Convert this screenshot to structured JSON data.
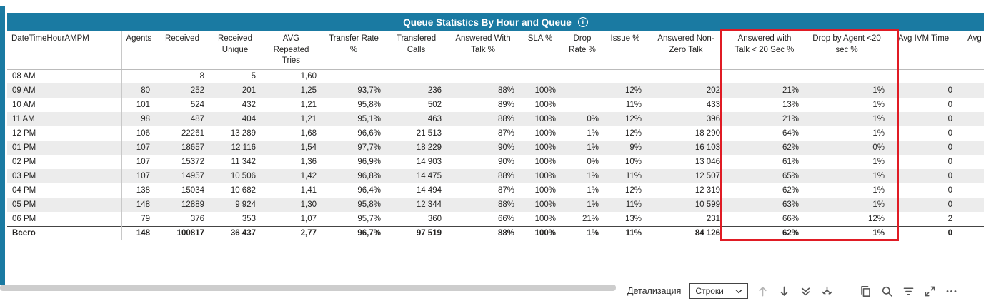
{
  "colors": {
    "accent": "#1A7AA2",
    "highlight": "#E01B24",
    "row_alt": "#ECECEC"
  },
  "visual": {
    "title": "Queue Statistics By Hour and Queue",
    "info_glyph": "i"
  },
  "table": {
    "columns": [
      "DateTimeHourAMPM",
      "Agents",
      "Received",
      "Received Unique",
      "AVG Repeated Tries",
      "Transfer Rate %",
      "Transfered Calls",
      "Answered With Talk %",
      "SLA %",
      "Drop Rate %",
      "Issue %",
      "Answered Non-Zero Talk",
      "Answered with Talk < 20 Sec %",
      "Drop by Agent <20 sec %",
      "Avg IVM Time",
      "Avg Ti"
    ],
    "rows": [
      [
        "08 AM",
        "",
        "8",
        "5",
        "1,60",
        "",
        "",
        "",
        "",
        "",
        "",
        "",
        "",
        "",
        "",
        ""
      ],
      [
        "09 AM",
        "80",
        "252",
        "201",
        "1,25",
        "93,7%",
        "236",
        "88%",
        "100%",
        "",
        "12%",
        "202",
        "21%",
        "1%",
        "0",
        ""
      ],
      [
        "10 AM",
        "101",
        "524",
        "432",
        "1,21",
        "95,8%",
        "502",
        "89%",
        "100%",
        "",
        "11%",
        "433",
        "13%",
        "1%",
        "0",
        ""
      ],
      [
        "11 AM",
        "98",
        "487",
        "404",
        "1,21",
        "95,1%",
        "463",
        "88%",
        "100%",
        "0%",
        "12%",
        "396",
        "21%",
        "1%",
        "0",
        ""
      ],
      [
        "12 PM",
        "106",
        "22261",
        "13 289",
        "1,68",
        "96,6%",
        "21 513",
        "87%",
        "100%",
        "1%",
        "12%",
        "18 290",
        "64%",
        "1%",
        "0",
        ""
      ],
      [
        "01 PM",
        "107",
        "18657",
        "12 116",
        "1,54",
        "97,7%",
        "18 229",
        "90%",
        "100%",
        "1%",
        "9%",
        "16 103",
        "62%",
        "0%",
        "0",
        ""
      ],
      [
        "02 PM",
        "107",
        "15372",
        "11 342",
        "1,36",
        "96,9%",
        "14 903",
        "90%",
        "100%",
        "0%",
        "10%",
        "13 046",
        "61%",
        "1%",
        "0",
        ""
      ],
      [
        "03 PM",
        "107",
        "14957",
        "10 506",
        "1,42",
        "96,8%",
        "14 475",
        "88%",
        "100%",
        "1%",
        "11%",
        "12 507",
        "65%",
        "1%",
        "0",
        ""
      ],
      [
        "04 PM",
        "138",
        "15034",
        "10 682",
        "1,41",
        "96,4%",
        "14 494",
        "87%",
        "100%",
        "1%",
        "12%",
        "12 319",
        "62%",
        "1%",
        "0",
        ""
      ],
      [
        "05 PM",
        "148",
        "12889",
        "9 924",
        "1,30",
        "95,8%",
        "12 344",
        "88%",
        "100%",
        "1%",
        "11%",
        "10 599",
        "63%",
        "1%",
        "0",
        ""
      ],
      [
        "06 PM",
        "79",
        "376",
        "353",
        "1,07",
        "95,7%",
        "360",
        "66%",
        "100%",
        "21%",
        "13%",
        "231",
        "66%",
        "12%",
        "2",
        ""
      ]
    ],
    "total_row": [
      "Всего",
      "148",
      "100817",
      "36 437",
      "2,77",
      "96,7%",
      "97 519",
      "88%",
      "100%",
      "1%",
      "11%",
      "84 126",
      "62%",
      "1%",
      "0",
      ""
    ]
  },
  "toolbar": {
    "drill_label": "Детализация",
    "rows_dropdown": "Строки",
    "icons": [
      "drill-up",
      "drill-down",
      "expand-next-level",
      "expand-all",
      "copy",
      "zoom",
      "filter",
      "focus-mode",
      "more-options"
    ]
  }
}
